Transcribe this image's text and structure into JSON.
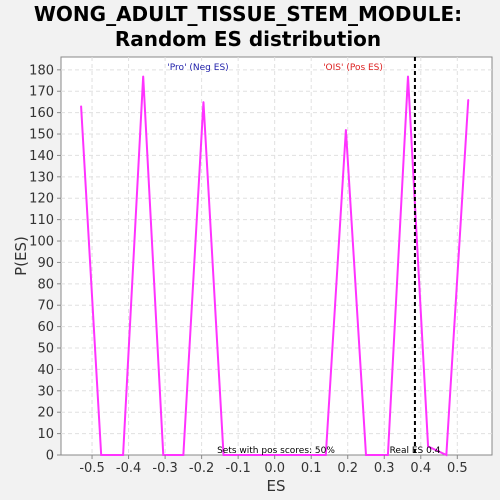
{
  "chart_data": {
    "type": "line",
    "title_line1": "WONG_ADULT_TISSUE_STEM_MODULE:",
    "title_line2": "Random ES distribution",
    "xlabel": "ES",
    "ylabel": "P(ES)",
    "xlim": [
      -0.585,
      0.595
    ],
    "ylim": [
      0,
      186
    ],
    "x_ticks": [
      -0.5,
      -0.4,
      -0.3,
      -0.2,
      -0.1,
      0.0,
      0.1,
      0.2,
      0.3,
      0.4,
      0.5
    ],
    "x_tick_labels": [
      "-0.5",
      "-0.4",
      "-0.3",
      "-0.2",
      "-0.1",
      "0.0",
      "0.1",
      "0.2",
      "0.3",
      "0.4",
      "0.5"
    ],
    "y_ticks": [
      0,
      10,
      20,
      30,
      40,
      50,
      60,
      70,
      80,
      90,
      100,
      110,
      120,
      130,
      140,
      150,
      160,
      170,
      180
    ],
    "grid": true,
    "series": [
      {
        "color": "#ff33ff",
        "x": [
          -0.53,
          -0.475,
          -0.415,
          -0.36,
          -0.305,
          -0.25,
          -0.195,
          -0.14,
          0.14,
          0.195,
          0.25,
          0.31,
          0.365,
          0.42,
          0.47,
          0.53
        ],
        "y": [
          163,
          0,
          0,
          177,
          0,
          0,
          165,
          0,
          0,
          152,
          0,
          0,
          177,
          4,
          0,
          166
        ]
      }
    ],
    "real_es_line": {
      "x": 0.384,
      "color": "#000000",
      "style": "dashed"
    },
    "annotations": {
      "neg_label": "'Pro' (Neg ES)",
      "neg_color": "#1f1faa",
      "pos_label": "'OIS' (Pos ES)",
      "pos_color": "#dd2222",
      "sets_text": "Sets with pos scores: 50%",
      "real_es_text": "Real ES 0.4"
    },
    "colors": {
      "plot_bg": "#ffffff",
      "page_bg": "#f2f2f2",
      "grid": "#e0e0e0",
      "axis": "#888888"
    }
  }
}
